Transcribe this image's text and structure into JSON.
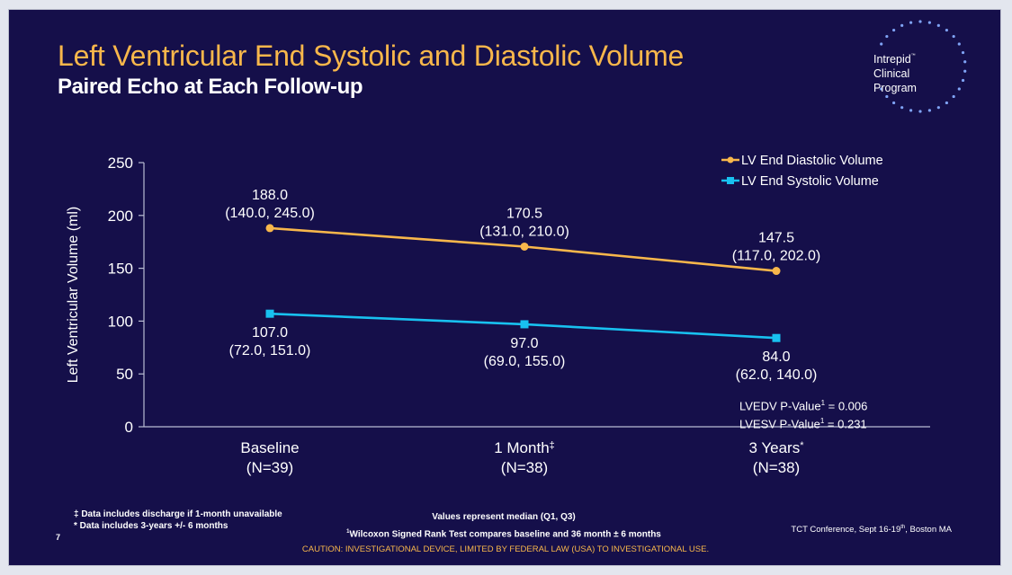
{
  "slide": {
    "title": "Left Ventricular End Systolic and Diastolic Volume",
    "subtitle": "Paired Echo at Each Follow-up",
    "page_number": "7",
    "logo": {
      "icon": "dotted-circle-logo-icon",
      "line1": "Intrepid",
      "trademark": "™",
      "line2": "Clinical",
      "line3": "Program"
    },
    "colors": {
      "background": "#150f4a",
      "title": "#f8b74b",
      "diastolic": "#f8b74b",
      "systolic": "#18c1f0",
      "text": "#ffffff"
    },
    "p_values": {
      "lvedv_label": "LVEDV P-Value",
      "lvedv_sup": "1",
      "lvedv_value": " = 0.006",
      "lvesv_label": "LVESV P-Value",
      "lvesv_sup": "1",
      "lvesv_value": " = 0.231"
    },
    "footnotes": {
      "left_1": "‡ Data includes discharge if 1-month unavailable",
      "left_2": "* Data includes 3-years +/- 6 months",
      "center_1": "Values represent median (Q1, Q3)",
      "center_2_sup": "1",
      "center_2": "Wilcoxon Signed Rank Test compares baseline and 36 month ± 6 months",
      "conference_pre": "TCT Conference, Sept 16-19",
      "conference_sup": "th",
      "conference_post": ", Boston MA",
      "caution": "CAUTION: INVESTIGATIONAL DEVICE, LIMITED BY FEDERAL LAW (USA) TO INVESTIGATIONAL USE."
    }
  },
  "chart_data": {
    "type": "line",
    "title": "Left Ventricular End Systolic and Diastolic Volume",
    "xlabel": "",
    "ylabel": "Left Ventricular Volume (ml)",
    "ylim": [
      0,
      250
    ],
    "yticks": [
      0,
      50,
      100,
      150,
      200,
      250
    ],
    "grid": false,
    "legend": "top-right",
    "categories": [
      {
        "label": "Baseline",
        "n": "(N=39)"
      },
      {
        "label": "1 Month‡",
        "n": "(N=38)"
      },
      {
        "label": "3 Years*",
        "n": "(N=38)"
      }
    ],
    "series": [
      {
        "name": "LV End Diastolic Volume",
        "marker": "circle",
        "color": "#f8b74b",
        "values": [
          188.0,
          170.5,
          147.5
        ],
        "labels": [
          "188.0",
          "170.5",
          "147.5"
        ],
        "iqr": [
          "(140.0, 245.0)",
          "(131.0, 210.0)",
          "(117.0, 202.0)"
        ],
        "label_position": "above"
      },
      {
        "name": "LV End Systolic Volume",
        "marker": "square",
        "color": "#18c1f0",
        "values": [
          107.0,
          97.0,
          84.0
        ],
        "labels": [
          "107.0",
          "97.0",
          "84.0"
        ],
        "iqr": [
          "(72.0, 151.0)",
          "(69.0, 155.0)",
          "(62.0, 140.0)"
        ],
        "label_position": "below"
      }
    ]
  }
}
